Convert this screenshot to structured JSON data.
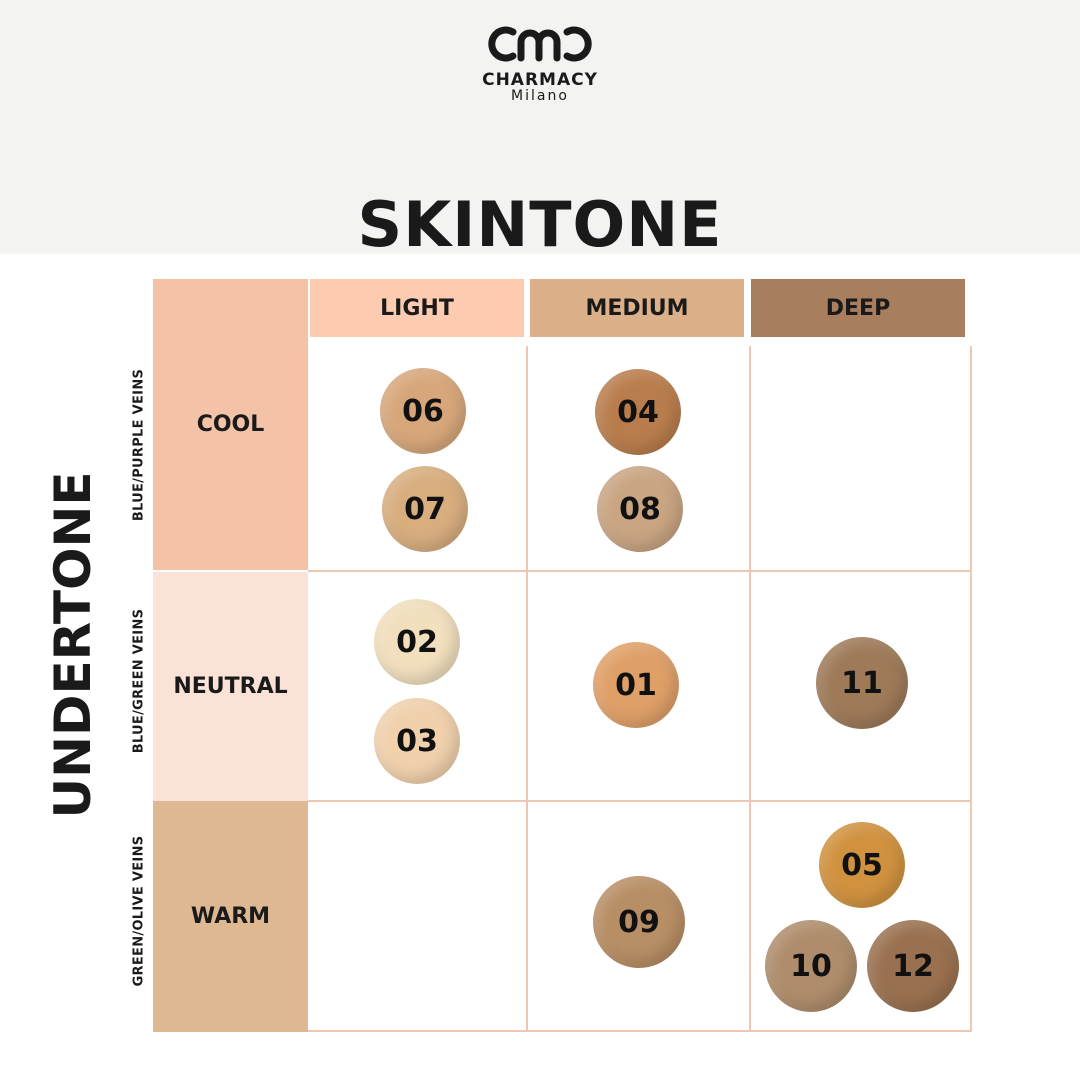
{
  "brand": {
    "name": "CHARMACY",
    "city": "Milano"
  },
  "title": "SKINTONE",
  "side_title": "UNDERTONE",
  "columns": {
    "light": "LIGHT",
    "medium": "MEDIUM",
    "deep": "DEEP"
  },
  "rows": {
    "cool": {
      "label": "COOL",
      "veins": "BLUE/PURPLE VEINS"
    },
    "neutral": {
      "label": "NEUTRAL",
      "veins": "BLUE/GREEN VEINS"
    },
    "warm": {
      "label": "WARM",
      "veins": "GREEN/OLIVE VEINS"
    }
  },
  "colors": {
    "light_header": "#fccbb0",
    "medium_header": "#dcb189",
    "deep_header": "#a97e5e",
    "cool_row": "#f3c2a7",
    "neutral_row": "#fae3d6",
    "warm_row": "#deb892",
    "grid_line": "#ecc8b3"
  },
  "swatches": [
    {
      "shade": "06",
      "color": "#d7a77b"
    },
    {
      "shade": "07",
      "color": "#d8ae7f"
    },
    {
      "shade": "04",
      "color": "#b97d4d"
    },
    {
      "shade": "08",
      "color": "#c9a582"
    },
    {
      "shade": "02",
      "color": "#f1dfbd"
    },
    {
      "shade": "03",
      "color": "#f0d1ac"
    },
    {
      "shade": "01",
      "color": "#dfa068"
    },
    {
      "shade": "11",
      "color": "#9e7a59"
    },
    {
      "shade": "09",
      "color": "#b88e65"
    },
    {
      "shade": "05",
      "color": "#d0923f"
    },
    {
      "shade": "10",
      "color": "#af8d6c"
    },
    {
      "shade": "12",
      "color": "#9a7150"
    }
  ]
}
